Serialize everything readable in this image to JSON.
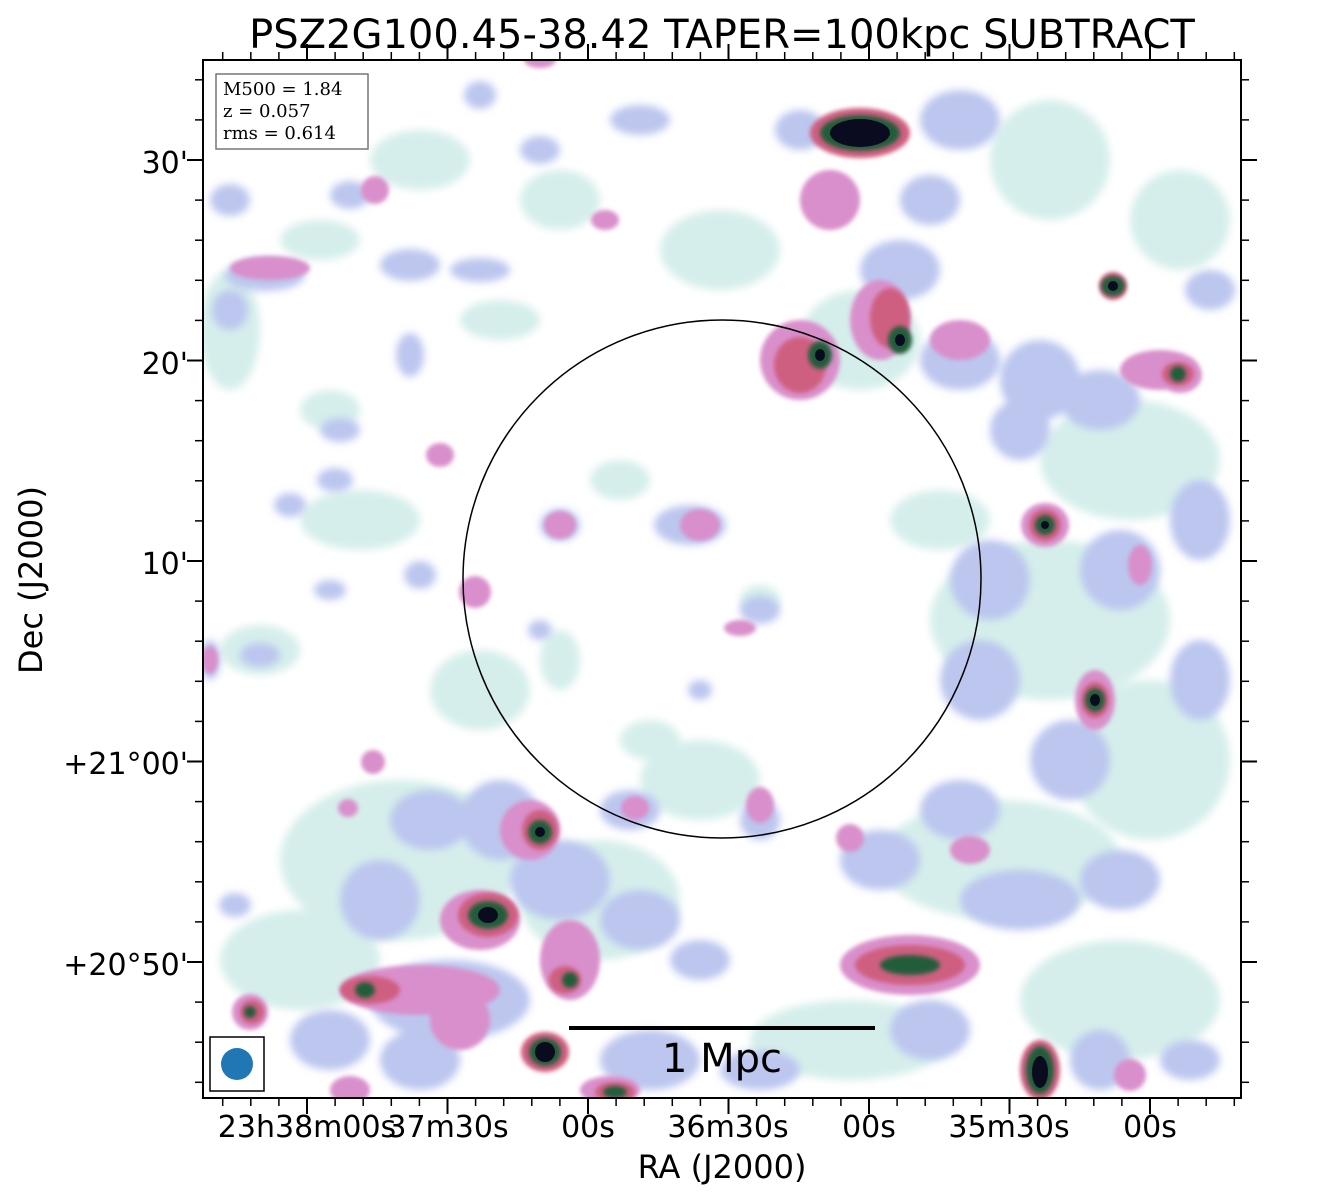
{
  "title": "PSZ2G100.45-38.42 TAPER=100kpc SUBTRACT",
  "axes": {
    "xlabel": "RA (J2000)",
    "ylabel": "Dec (J2000)",
    "x_ticks": [
      "23h38m00s",
      "37m30s",
      "00s",
      "36m30s",
      "00s",
      "35m30s",
      "00s"
    ],
    "y_ticks": [
      "30'",
      "20'",
      "10'",
      "+21°00'",
      "+20°50'"
    ]
  },
  "info_box": {
    "line1": "M500 = 1.84",
    "line2": "z = 0.057",
    "line3": "rms = 0.614"
  },
  "scalebar_label": "1 Mpc",
  "colors": {
    "background": "#ffffff",
    "faint_emission": "#c8eae4",
    "low_emission": "#b9c4ee",
    "mid_emission": "#d58cc9",
    "high_emission": "#cc5a7a",
    "peak_emission": "#1f5d3c",
    "core": "#0a0a1e",
    "beam": "#1f77b4"
  }
}
